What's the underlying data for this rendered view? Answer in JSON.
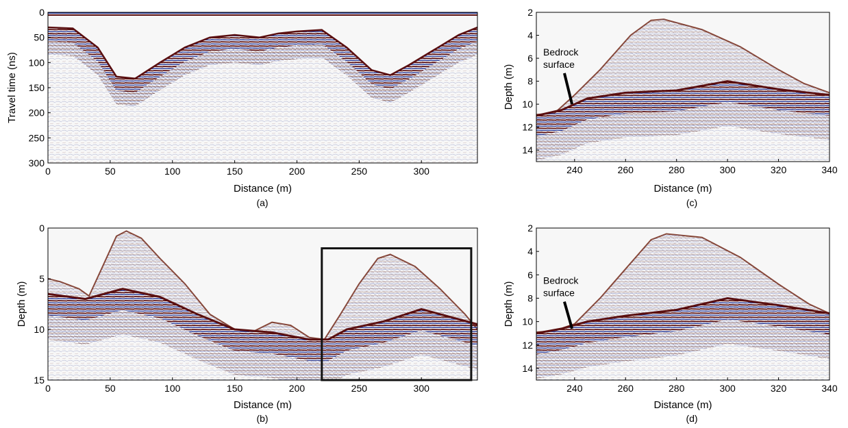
{
  "colors": {
    "background": "#f7f7f7",
    "positive": "#5a0f10",
    "negative": "#2e3f9a",
    "frame": "#000000",
    "highlight_box": "#111111"
  },
  "chart_data": [
    {
      "id": "a",
      "type": "heatmap",
      "panel_label": "(a)",
      "xlabel": "Distance (m)",
      "ylabel": "Travel time (ns)",
      "xlim": [
        0,
        345
      ],
      "ylim": [
        0,
        300
      ],
      "y_inverted": true,
      "xticks": [
        0,
        50,
        100,
        150,
        200,
        250,
        300
      ],
      "yticks": [
        0,
        50,
        100,
        150,
        200,
        250,
        300
      ],
      "surface_profile": [
        [
          0,
          30
        ],
        [
          20,
          32
        ],
        [
          40,
          70
        ],
        [
          55,
          128
        ],
        [
          70,
          132
        ],
        [
          90,
          100
        ],
        [
          110,
          70
        ],
        [
          130,
          50
        ],
        [
          150,
          45
        ],
        [
          170,
          50
        ],
        [
          185,
          42
        ],
        [
          200,
          38
        ],
        [
          220,
          35
        ],
        [
          240,
          70
        ],
        [
          260,
          115
        ],
        [
          275,
          125
        ],
        [
          290,
          105
        ],
        [
          310,
          75
        ],
        [
          330,
          45
        ],
        [
          345,
          30
        ]
      ]
    },
    {
      "id": "b",
      "type": "heatmap",
      "panel_label": "(b)",
      "xlabel": "Distance (m)",
      "ylabel": "Depth (m)",
      "xlim": [
        0,
        345
      ],
      "ylim": [
        0,
        15
      ],
      "y_inverted": true,
      "xticks": [
        0,
        50,
        100,
        150,
        200,
        250,
        300
      ],
      "yticks": [
        0,
        5,
        10,
        15
      ],
      "surface_profile": [
        [
          0,
          5.0
        ],
        [
          10,
          5.3
        ],
        [
          25,
          6.0
        ],
        [
          33,
          6.7
        ],
        [
          45,
          3.5
        ],
        [
          55,
          0.8
        ],
        [
          63,
          0.3
        ],
        [
          75,
          1.0
        ],
        [
          90,
          3.0
        ],
        [
          110,
          5.5
        ],
        [
          130,
          8.5
        ],
        [
          150,
          10.0
        ],
        [
          165,
          10.2
        ],
        [
          180,
          9.3
        ],
        [
          195,
          9.6
        ],
        [
          210,
          10.8
        ],
        [
          222,
          11.0
        ],
        [
          235,
          8.5
        ],
        [
          250,
          5.5
        ],
        [
          265,
          3.0
        ],
        [
          275,
          2.6
        ],
        [
          295,
          3.8
        ],
        [
          315,
          6.0
        ],
        [
          335,
          8.5
        ],
        [
          345,
          10.0
        ]
      ],
      "bedrock_profile": [
        [
          0,
          6.5
        ],
        [
          30,
          7.0
        ],
        [
          60,
          6.0
        ],
        [
          90,
          6.8
        ],
        [
          120,
          8.5
        ],
        [
          150,
          10.0
        ],
        [
          180,
          10.3
        ],
        [
          210,
          11.0
        ],
        [
          225,
          11.0
        ],
        [
          240,
          10.0
        ],
        [
          270,
          9.2
        ],
        [
          300,
          8.0
        ],
        [
          345,
          9.5
        ]
      ],
      "highlight_box": {
        "x": [
          220,
          340
        ],
        "y": [
          2,
          15
        ]
      }
    },
    {
      "id": "c",
      "type": "heatmap",
      "panel_label": "(c)",
      "xlabel": "Distance (m)",
      "ylabel": "Depth (m)",
      "xlim": [
        225,
        340
      ],
      "ylim": [
        2,
        15
      ],
      "y_inverted": true,
      "xticks": [
        240,
        260,
        280,
        300,
        320,
        340
      ],
      "yticks": [
        2,
        4,
        6,
        8,
        10,
        12,
        14
      ],
      "surface_profile": [
        [
          225,
          10.9
        ],
        [
          232,
          10.8
        ],
        [
          240,
          9.2
        ],
        [
          250,
          7.0
        ],
        [
          262,
          4.0
        ],
        [
          270,
          2.7
        ],
        [
          275,
          2.6
        ],
        [
          290,
          3.5
        ],
        [
          305,
          5.0
        ],
        [
          320,
          7.0
        ],
        [
          330,
          8.2
        ],
        [
          340,
          9.0
        ]
      ],
      "bedrock_profile": [
        [
          225,
          11.0
        ],
        [
          235,
          10.5
        ],
        [
          245,
          9.5
        ],
        [
          260,
          9.0
        ],
        [
          280,
          8.8
        ],
        [
          300,
          8.0
        ],
        [
          320,
          8.7
        ],
        [
          340,
          9.2
        ]
      ],
      "annotation": {
        "text": [
          "Bedrock",
          "surface"
        ],
        "arrow_from": [
          236,
          7.3
        ],
        "arrow_to": [
          239,
          10.0
        ]
      }
    },
    {
      "id": "d",
      "type": "heatmap",
      "panel_label": "(d)",
      "xlabel": "Distance (m)",
      "ylabel": "Depth (m)",
      "xlim": [
        225,
        340
      ],
      "ylim": [
        2,
        15
      ],
      "y_inverted": true,
      "xticks": [
        240,
        260,
        280,
        300,
        320,
        340
      ],
      "yticks": [
        2,
        4,
        6,
        8,
        10,
        12,
        14
      ],
      "surface_profile": [
        [
          225,
          10.9
        ],
        [
          232,
          10.8
        ],
        [
          240,
          10.2
        ],
        [
          250,
          8.0
        ],
        [
          262,
          5.0
        ],
        [
          270,
          3.0
        ],
        [
          276,
          2.5
        ],
        [
          290,
          2.8
        ],
        [
          305,
          4.5
        ],
        [
          320,
          6.8
        ],
        [
          332,
          8.5
        ],
        [
          340,
          9.3
        ]
      ],
      "bedrock_profile": [
        [
          225,
          11.0
        ],
        [
          235,
          10.6
        ],
        [
          245,
          10.0
        ],
        [
          260,
          9.5
        ],
        [
          280,
          9.0
        ],
        [
          300,
          8.0
        ],
        [
          320,
          8.6
        ],
        [
          340,
          9.3
        ]
      ],
      "annotation": {
        "text": [
          "Bedrock",
          "surface"
        ],
        "arrow_from": [
          236,
          8.3
        ],
        "arrow_to": [
          239,
          10.6
        ]
      }
    }
  ]
}
